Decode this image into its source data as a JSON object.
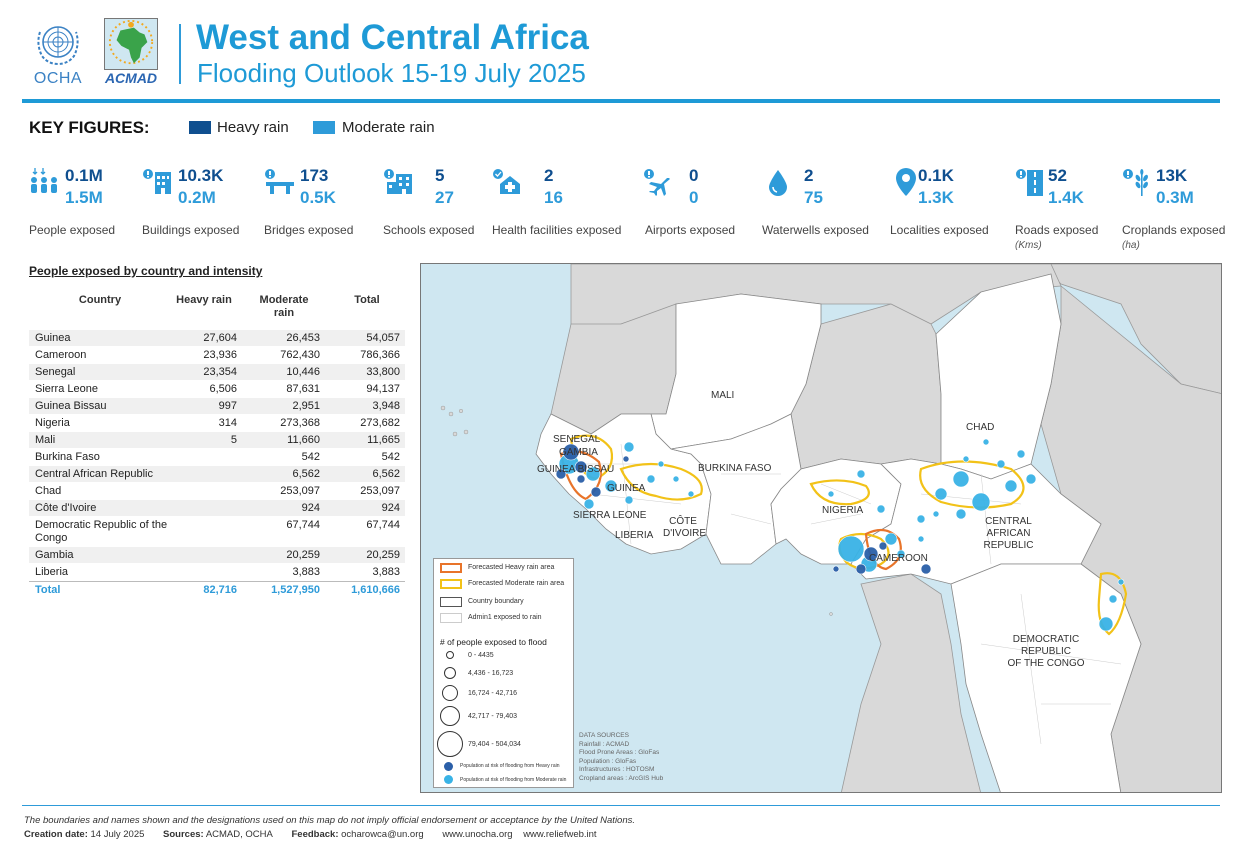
{
  "header": {
    "ocha_logo_text": "OCHA",
    "acmad_logo_text": "ACMAD",
    "title": "West and Central Africa",
    "subtitle": "Flooding Outlook 15-19 July 2025"
  },
  "key_figures": {
    "label": "KEY FIGURES:",
    "legend": [
      {
        "label": "Heavy rain",
        "color": "#0f4f8f"
      },
      {
        "label": "Moderate rain",
        "color": "#2e9bd9"
      }
    ],
    "figures": [
      {
        "icon": "people-icon",
        "heavy": "0.1M",
        "moderate": "1.5M",
        "label": "People exposed",
        "unit": ""
      },
      {
        "icon": "building-icon",
        "heavy": "10.3K",
        "moderate": "0.2M",
        "label": "Buildings exposed",
        "unit": ""
      },
      {
        "icon": "bridge-icon",
        "heavy": "173",
        "moderate": "0.5K",
        "label": "Bridges exposed",
        "unit": ""
      },
      {
        "icon": "school-icon",
        "heavy": "5",
        "moderate": "27",
        "label": "Schools exposed",
        "unit": ""
      },
      {
        "icon": "health-facility-icon",
        "heavy": "2",
        "moderate": "16",
        "label": "Health facilities exposed",
        "unit": ""
      },
      {
        "icon": "airport-icon",
        "heavy": "0",
        "moderate": "0",
        "label": "Airports exposed",
        "unit": ""
      },
      {
        "icon": "waterwell-icon",
        "heavy": "2",
        "moderate": "75",
        "label": "Waterwells exposed",
        "unit": ""
      },
      {
        "icon": "locality-pin-icon",
        "heavy": "0.1K",
        "moderate": "1.3K",
        "label": "Localities exposed",
        "unit": ""
      },
      {
        "icon": "road-icon",
        "heavy": "52",
        "moderate": "1.4K",
        "label": "Roads exposed",
        "unit": "(Kms)"
      },
      {
        "icon": "cropland-icon",
        "heavy": "13K",
        "moderate": "0.3M",
        "label": "Croplands exposed",
        "unit": "(ha)"
      }
    ]
  },
  "table": {
    "title": "People exposed by country and intensity",
    "headers": {
      "country": "Country",
      "heavy": "Heavy rain",
      "moderate_l1": "Moderate",
      "moderate_l2": "rain",
      "total": "Total"
    },
    "rows": [
      {
        "country": "Guinea",
        "heavy": "27,604",
        "moderate": "26,453",
        "total": "54,057"
      },
      {
        "country": "Cameroon",
        "heavy": "23,936",
        "moderate": "762,430",
        "total": "786,366"
      },
      {
        "country": "Senegal",
        "heavy": "23,354",
        "moderate": "10,446",
        "total": "33,800"
      },
      {
        "country": "Sierra Leone",
        "heavy": "6,506",
        "moderate": "87,631",
        "total": "94,137"
      },
      {
        "country": "Guinea Bissau",
        "heavy": "997",
        "moderate": "2,951",
        "total": "3,948"
      },
      {
        "country": "Nigeria",
        "heavy": "314",
        "moderate": "273,368",
        "total": "273,682"
      },
      {
        "country": "Mali",
        "heavy": "5",
        "moderate": "11,660",
        "total": "11,665"
      },
      {
        "country": "Burkina Faso",
        "heavy": "",
        "moderate": "542",
        "total": "542"
      },
      {
        "country": "Central African Republic",
        "heavy": "",
        "moderate": "6,562",
        "total": "6,562"
      },
      {
        "country": "Chad",
        "heavy": "",
        "moderate": "253,097",
        "total": "253,097"
      },
      {
        "country": "Côte d'Ivoire",
        "heavy": "",
        "moderate": "924",
        "total": "924"
      },
      {
        "country": "Democratic Republic of the Congo",
        "heavy": "",
        "moderate": "67,744",
        "total": "67,744"
      },
      {
        "country": "Gambia",
        "heavy": "",
        "moderate": "20,259",
        "total": "20,259"
      },
      {
        "country": "Liberia",
        "heavy": "",
        "moderate": "3,883",
        "total": "3,883"
      }
    ],
    "total": {
      "country": "Total",
      "heavy": "82,716",
      "moderate": "1,527,950",
      "total": "1,610,666"
    }
  },
  "map": {
    "labels": {
      "mali": "MALI",
      "chad": "CHAD",
      "senegal": "SENEGAL",
      "gambia": "GAMBIA",
      "guinea_bissau": "GUINEA BISSAU",
      "guinea": "GUINEA",
      "burkina": "BURKINA FASO",
      "sierra": "SIERRA LEONE",
      "liberia": "LIBERIA",
      "cote_l1": "CÔTE",
      "cote_l2": "D'IVOIRE",
      "nigeria": "NIGERIA",
      "cameroon": "CAMEROON",
      "car_l1": "CENTRAL",
      "car_l2": "AFRICAN",
      "car_l3": "REPUBLIC",
      "drc_l1": "DEMOCRATIC",
      "drc_l2": "REPUBLIC",
      "drc_l3": "OF THE CONGO"
    },
    "legend": {
      "heavy_area": "Forecasted Heavy rain area",
      "moderate_area": "Forecasted Moderate rain area",
      "country_boundary": "Country boundary",
      "admin1": "Admin1 exposed to rain",
      "people_head": "# of people exposed to flood",
      "classes": [
        "0 - 4435",
        "4,436 - 16,723",
        "16,724 - 42,716",
        "42,717 - 79,403",
        "79,404 - 504,034"
      ],
      "heavy_dot": "Population at risk of flooding from Heavy rain",
      "moderate_dot": "Population at risk of flooding from Moderate rain",
      "heavy_area_color": "#e8742a",
      "moderate_area_color": "#f2c218",
      "heavy_dot_color": "#2b5fa8",
      "moderate_dot_color": "#39b3e6"
    },
    "sources": {
      "head": "DATA SOURCES",
      "rainfall": "Rainfall : ACMAD",
      "flood": "Flood Prone Areas : GloFas",
      "population": "Population : GloFas",
      "infra": "Infrastructures : HOTOSM",
      "cropland": "Cropland areas : ArcGIS Hub"
    }
  },
  "footer": {
    "disclaimer": "The boundaries and names shown and the designations used on this map do not imply official endorsement or acceptance by the United Nations.",
    "creation_label": "Creation date:",
    "creation_value": "14 July 2025",
    "sources_label": "Sources:",
    "sources_value": "ACMAD, OCHA",
    "feedback_label": "Feedback:",
    "feedback_value": "ocharowca@un.org",
    "link1": "www.unocha.org",
    "link2": "www.reliefweb.int"
  }
}
